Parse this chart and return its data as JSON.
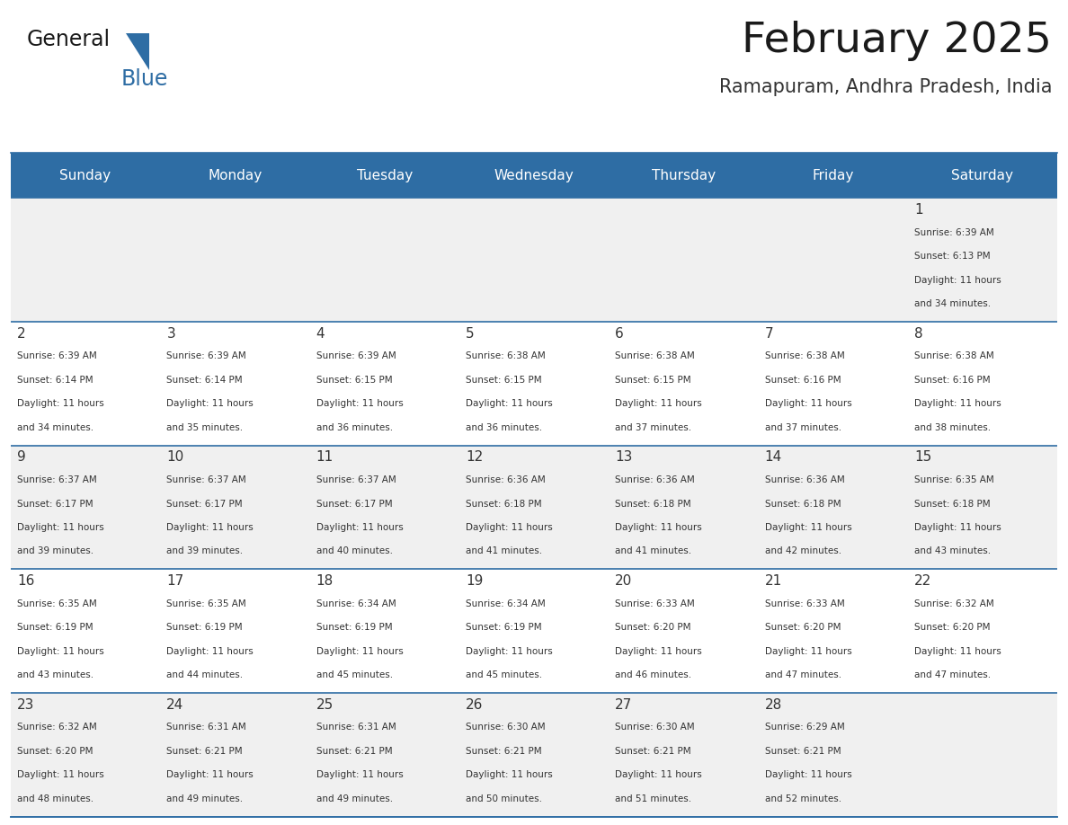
{
  "title": "February 2025",
  "subtitle": "Ramapuram, Andhra Pradesh, India",
  "header_bg": "#2E6DA4",
  "header_text_color": "#FFFFFF",
  "cell_bg_odd": "#F0F0F0",
  "cell_bg_even": "#FFFFFF",
  "border_color": "#2E6DA4",
  "text_color": "#333333",
  "days_of_week": [
    "Sunday",
    "Monday",
    "Tuesday",
    "Wednesday",
    "Thursday",
    "Friday",
    "Saturday"
  ],
  "calendar_data": [
    [
      null,
      null,
      null,
      null,
      null,
      null,
      {
        "day": 1,
        "sunrise": "6:39 AM",
        "sunset": "6:13 PM",
        "daylight": "11 hours and 34 minutes."
      }
    ],
    [
      {
        "day": 2,
        "sunrise": "6:39 AM",
        "sunset": "6:14 PM",
        "daylight": "11 hours and 34 minutes."
      },
      {
        "day": 3,
        "sunrise": "6:39 AM",
        "sunset": "6:14 PM",
        "daylight": "11 hours and 35 minutes."
      },
      {
        "day": 4,
        "sunrise": "6:39 AM",
        "sunset": "6:15 PM",
        "daylight": "11 hours and 36 minutes."
      },
      {
        "day": 5,
        "sunrise": "6:38 AM",
        "sunset": "6:15 PM",
        "daylight": "11 hours and 36 minutes."
      },
      {
        "day": 6,
        "sunrise": "6:38 AM",
        "sunset": "6:15 PM",
        "daylight": "11 hours and 37 minutes."
      },
      {
        "day": 7,
        "sunrise": "6:38 AM",
        "sunset": "6:16 PM",
        "daylight": "11 hours and 37 minutes."
      },
      {
        "day": 8,
        "sunrise": "6:38 AM",
        "sunset": "6:16 PM",
        "daylight": "11 hours and 38 minutes."
      }
    ],
    [
      {
        "day": 9,
        "sunrise": "6:37 AM",
        "sunset": "6:17 PM",
        "daylight": "11 hours and 39 minutes."
      },
      {
        "day": 10,
        "sunrise": "6:37 AM",
        "sunset": "6:17 PM",
        "daylight": "11 hours and 39 minutes."
      },
      {
        "day": 11,
        "sunrise": "6:37 AM",
        "sunset": "6:17 PM",
        "daylight": "11 hours and 40 minutes."
      },
      {
        "day": 12,
        "sunrise": "6:36 AM",
        "sunset": "6:18 PM",
        "daylight": "11 hours and 41 minutes."
      },
      {
        "day": 13,
        "sunrise": "6:36 AM",
        "sunset": "6:18 PM",
        "daylight": "11 hours and 41 minutes."
      },
      {
        "day": 14,
        "sunrise": "6:36 AM",
        "sunset": "6:18 PM",
        "daylight": "11 hours and 42 minutes."
      },
      {
        "day": 15,
        "sunrise": "6:35 AM",
        "sunset": "6:18 PM",
        "daylight": "11 hours and 43 minutes."
      }
    ],
    [
      {
        "day": 16,
        "sunrise": "6:35 AM",
        "sunset": "6:19 PM",
        "daylight": "11 hours and 43 minutes."
      },
      {
        "day": 17,
        "sunrise": "6:35 AM",
        "sunset": "6:19 PM",
        "daylight": "11 hours and 44 minutes."
      },
      {
        "day": 18,
        "sunrise": "6:34 AM",
        "sunset": "6:19 PM",
        "daylight": "11 hours and 45 minutes."
      },
      {
        "day": 19,
        "sunrise": "6:34 AM",
        "sunset": "6:19 PM",
        "daylight": "11 hours and 45 minutes."
      },
      {
        "day": 20,
        "sunrise": "6:33 AM",
        "sunset": "6:20 PM",
        "daylight": "11 hours and 46 minutes."
      },
      {
        "day": 21,
        "sunrise": "6:33 AM",
        "sunset": "6:20 PM",
        "daylight": "11 hours and 47 minutes."
      },
      {
        "day": 22,
        "sunrise": "6:32 AM",
        "sunset": "6:20 PM",
        "daylight": "11 hours and 47 minutes."
      }
    ],
    [
      {
        "day": 23,
        "sunrise": "6:32 AM",
        "sunset": "6:20 PM",
        "daylight": "11 hours and 48 minutes."
      },
      {
        "day": 24,
        "sunrise": "6:31 AM",
        "sunset": "6:21 PM",
        "daylight": "11 hours and 49 minutes."
      },
      {
        "day": 25,
        "sunrise": "6:31 AM",
        "sunset": "6:21 PM",
        "daylight": "11 hours and 49 minutes."
      },
      {
        "day": 26,
        "sunrise": "6:30 AM",
        "sunset": "6:21 PM",
        "daylight": "11 hours and 50 minutes."
      },
      {
        "day": 27,
        "sunrise": "6:30 AM",
        "sunset": "6:21 PM",
        "daylight": "11 hours and 51 minutes."
      },
      {
        "day": 28,
        "sunrise": "6:29 AM",
        "sunset": "6:21 PM",
        "daylight": "11 hours and 52 minutes."
      },
      null
    ]
  ]
}
